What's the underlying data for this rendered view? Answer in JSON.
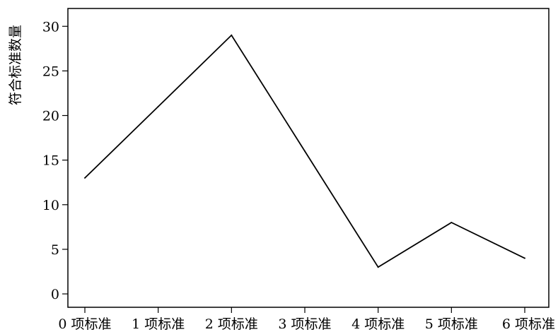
{
  "chart_data": {
    "type": "line",
    "title": "",
    "xlabel": "",
    "ylabel": "符合标准数量",
    "categories": [
      "0 项标准",
      "1 项标准",
      "2 项标准",
      "3 项标准",
      "4 项标准",
      "5 项标准",
      "6 项标准"
    ],
    "series": [
      {
        "values": [
          13,
          21,
          29,
          16,
          3,
          8,
          4
        ]
      }
    ],
    "ylim": [
      -1.5,
      32
    ],
    "y_ticks": [
      0,
      5,
      10,
      15,
      20,
      25,
      30
    ],
    "grid": false,
    "legend": "none",
    "colors": {
      "line": "#000000",
      "axis": "#000000",
      "background": "#ffffff"
    }
  }
}
